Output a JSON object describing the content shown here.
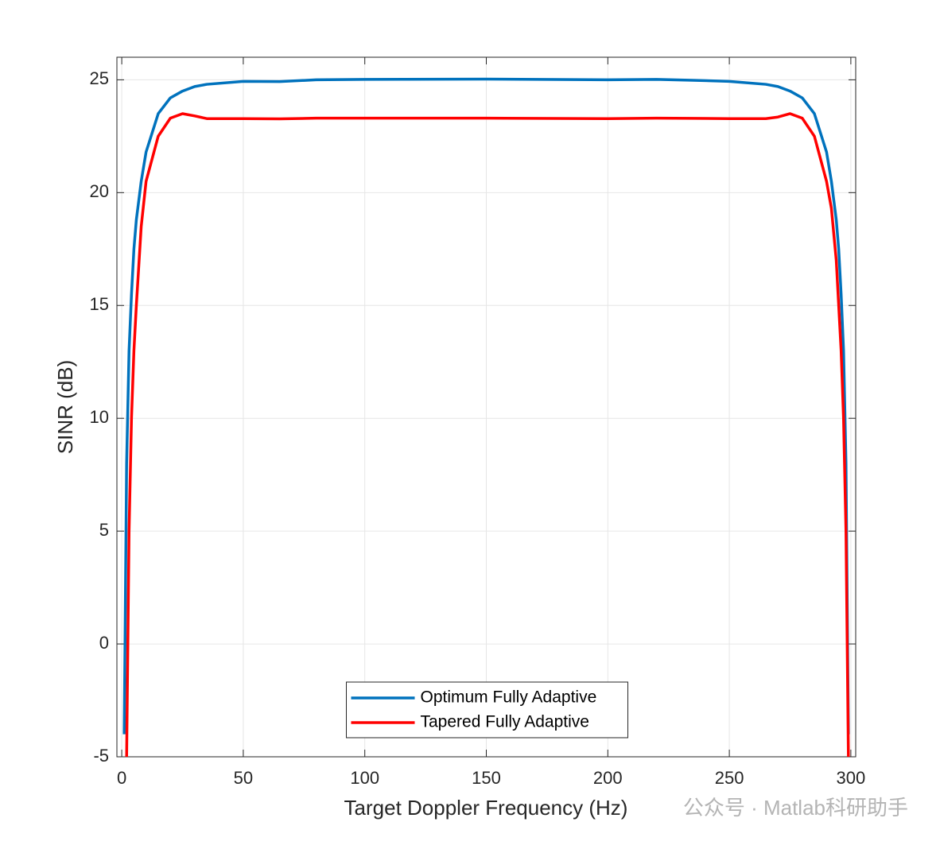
{
  "chart_data": {
    "type": "line",
    "xlabel": "Target Doppler Frequency (Hz)",
    "ylabel": "SINR (dB)",
    "watermark": "公众号 · Matlab科研助手",
    "x": [
      1,
      2,
      3,
      4,
      5,
      6,
      8,
      10,
      15,
      20,
      25,
      30,
      35,
      50,
      65,
      80,
      100,
      150,
      200,
      220,
      235,
      250,
      265,
      270,
      275,
      280,
      285,
      290,
      292,
      294,
      295,
      296,
      297,
      298,
      299
    ],
    "series": [
      {
        "name": "Optimum Fully Adaptive",
        "color": "#0072bd",
        "values": [
          -4,
          8,
          13,
          15.5,
          17.5,
          18.8,
          20.5,
          21.8,
          23.5,
          24.2,
          24.5,
          24.7,
          24.8,
          24.93,
          24.92,
          25.0,
          25.02,
          25.03,
          25.0,
          25.02,
          24.98,
          24.93,
          24.8,
          24.7,
          24.5,
          24.2,
          23.5,
          21.8,
          20.5,
          18.8,
          17.5,
          15.5,
          13,
          8,
          -4
        ]
      },
      {
        "name": "Tapered Fully Adaptive",
        "color": "#ff0000",
        "values": [
          null,
          -5,
          5,
          10,
          13,
          15,
          18.5,
          20.5,
          22.5,
          23.3,
          23.5,
          23.4,
          23.28,
          23.28,
          23.27,
          23.3,
          23.3,
          23.3,
          23.28,
          23.3,
          23.29,
          23.28,
          23.28,
          23.35,
          23.5,
          23.3,
          22.5,
          20.5,
          19.3,
          17,
          15,
          13,
          10,
          5,
          -5
        ]
      }
    ],
    "xlim": [
      -2,
      302
    ],
    "ylim": [
      -5,
      26
    ],
    "xticks": [
      0,
      50,
      100,
      150,
      200,
      250,
      300
    ],
    "yticks": [
      -5,
      0,
      5,
      10,
      15,
      20,
      25
    ],
    "grid": true,
    "legend": "bottom"
  }
}
